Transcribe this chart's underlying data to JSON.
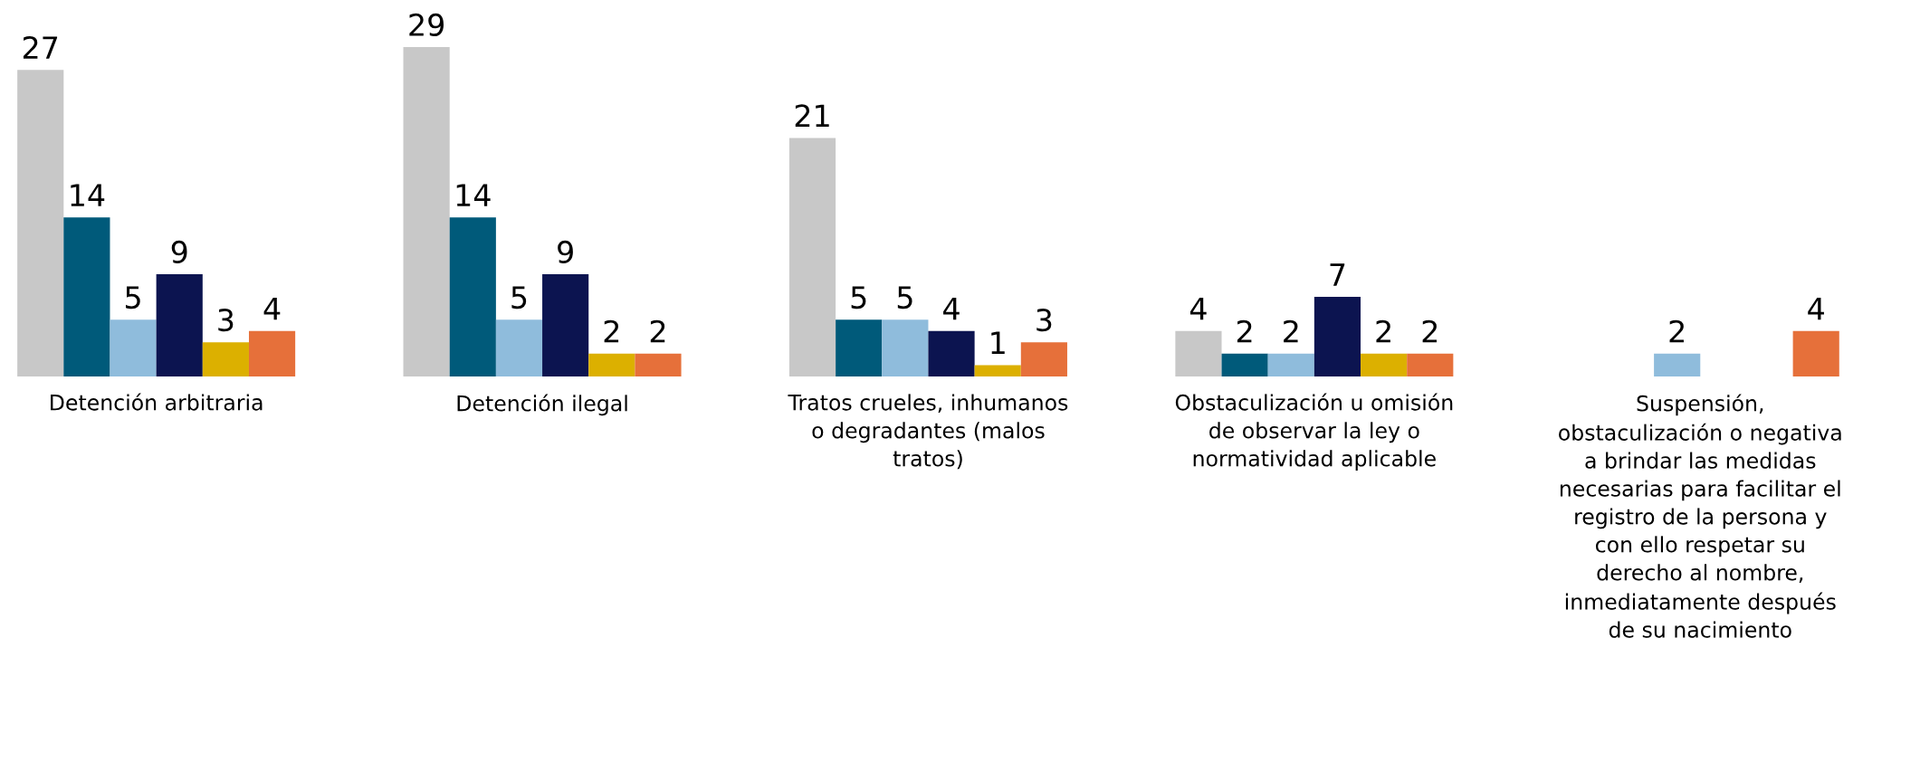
{
  "chart_data": {
    "type": "bar",
    "categories": [
      "Detención arbitraria",
      "Detención ilegal",
      "Tratos crueles, inhumanos\no degradantes (malos\ntratos)",
      "Obstaculización u omisión\nde observar la ley o\nnormatividad aplicable",
      "Suspensión,\nobstaculización o negativa\na brindar las medidas\nnecesarias para facilitar el\nregistro de la persona y\ncon ello respetar su\nderecho al nombre,\ninmediatamente después\nde su nacimiento"
    ],
    "series": [
      {
        "color": "#c8c8c8",
        "values": [
          27,
          29,
          21,
          4,
          null
        ]
      },
      {
        "color": "#005a7a",
        "values": [
          14,
          14,
          5,
          2,
          null
        ]
      },
      {
        "color": "#8fbcdc",
        "values": [
          5,
          5,
          5,
          2,
          2
        ]
      },
      {
        "color": "#0c1450",
        "values": [
          9,
          9,
          4,
          7,
          null
        ]
      },
      {
        "color": "#dcb000",
        "values": [
          3,
          2,
          1,
          2,
          null
        ]
      },
      {
        "color": "#e6703a",
        "values": [
          4,
          2,
          3,
          2,
          4
        ]
      }
    ],
    "data_labels": true,
    "grid": false
  }
}
